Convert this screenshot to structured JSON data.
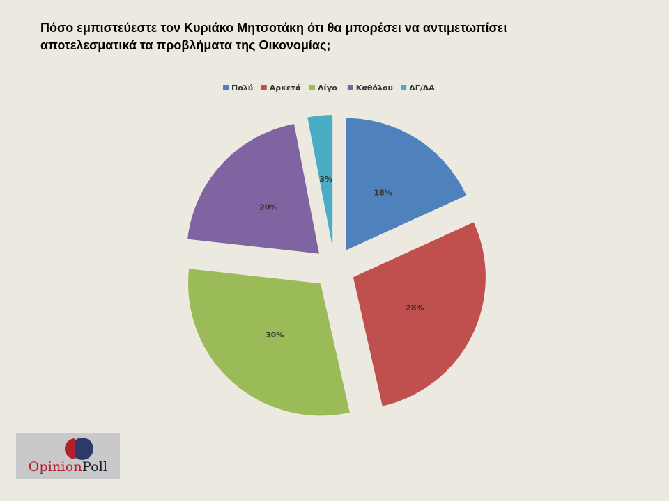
{
  "title_lines": [
    "Πόσο εμπιστεύεστε τον Κυριάκο Μητσοτάκη ότι θα μπορέσει να αντιμετωπίσει",
    "αποτελεσματικά τα προβλήματα της Οικονομίας;"
  ],
  "chart_data": {
    "type": "pie",
    "exploded": true,
    "legend_position": "top",
    "categories": [
      "Πολύ",
      "Αρκετά",
      "Λίγο",
      "Καθόλου",
      "ΔΓ/ΔΑ"
    ],
    "values": [
      18,
      28,
      30,
      20,
      3
    ],
    "labels": [
      "18%",
      "28%",
      "30%",
      "20%",
      "3%"
    ],
    "colors": [
      "#4f81bd",
      "#c0504d",
      "#9bbb59",
      "#8064a2",
      "#4bacc6"
    ]
  },
  "logo": {
    "text_part1": "Opinion",
    "text_part2": "Poll",
    "colors": [
      "#b3202a",
      "#2b3a6b"
    ]
  }
}
